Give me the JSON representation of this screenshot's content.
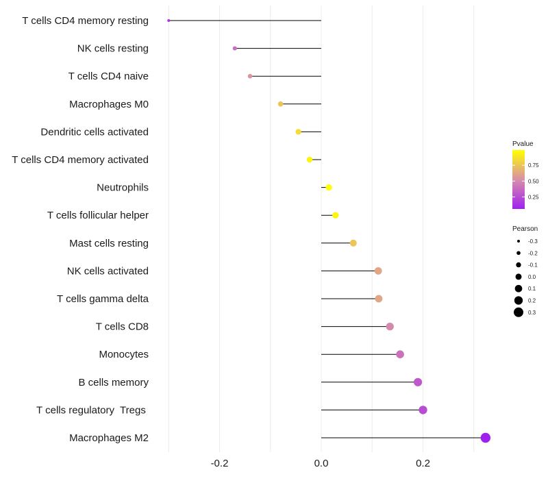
{
  "chart_data": {
    "type": "lollipop",
    "title": "",
    "xlabel": "",
    "ylabel": "",
    "xlim": [
      -0.305,
      0.325
    ],
    "xticks": [
      -0.2,
      0.0,
      0.2
    ],
    "xtick_labels": [
      "-0.2",
      "0.0",
      "0.2"
    ],
    "minor_gridlines": [
      -0.3,
      -0.1,
      0.1,
      0.3
    ],
    "categories": [
      "T cells CD4 memory resting",
      "NK cells resting",
      "T cells CD4 naive",
      "Macrophages M0",
      "Dendritic cells activated",
      "T cells CD4 memory activated",
      "Neutrophils",
      "T cells follicular helper",
      "Mast cells resting",
      "NK cells activated",
      "T cells gamma delta",
      "T cells CD8",
      "Monocytes",
      "B cells memory",
      "T cells regulatory  Tregs ",
      "Macrophages M2"
    ],
    "pearson": [
      -0.3,
      -0.17,
      -0.14,
      -0.08,
      -0.045,
      -0.023,
      0.015,
      0.028,
      0.063,
      0.112,
      0.113,
      0.135,
      0.155,
      0.19,
      0.2,
      0.323
    ],
    "pvalue": [
      0.15,
      0.4,
      0.55,
      0.75,
      0.85,
      0.95,
      0.99,
      0.95,
      0.75,
      0.62,
      0.62,
      0.5,
      0.4,
      0.3,
      0.25,
      0.06
    ],
    "legend_color": {
      "title": "Pvalue",
      "ticks": [
        0.25,
        0.5,
        0.75
      ],
      "tick_labels": [
        "0.25",
        "0.50",
        "0.75"
      ],
      "range": [
        0.06,
        0.99
      ],
      "colors": [
        "#a020f0",
        "#d88fa8",
        "#ffff00"
      ]
    },
    "legend_size": {
      "title": "Pearson",
      "values": [
        -0.3,
        -0.2,
        -0.1,
        0.0,
        0.1,
        0.2,
        0.3
      ],
      "labels": [
        "-0.3",
        "-0.2",
        "-0.1",
        "0.0",
        "0.1",
        "0.2",
        "0.3"
      ]
    }
  }
}
